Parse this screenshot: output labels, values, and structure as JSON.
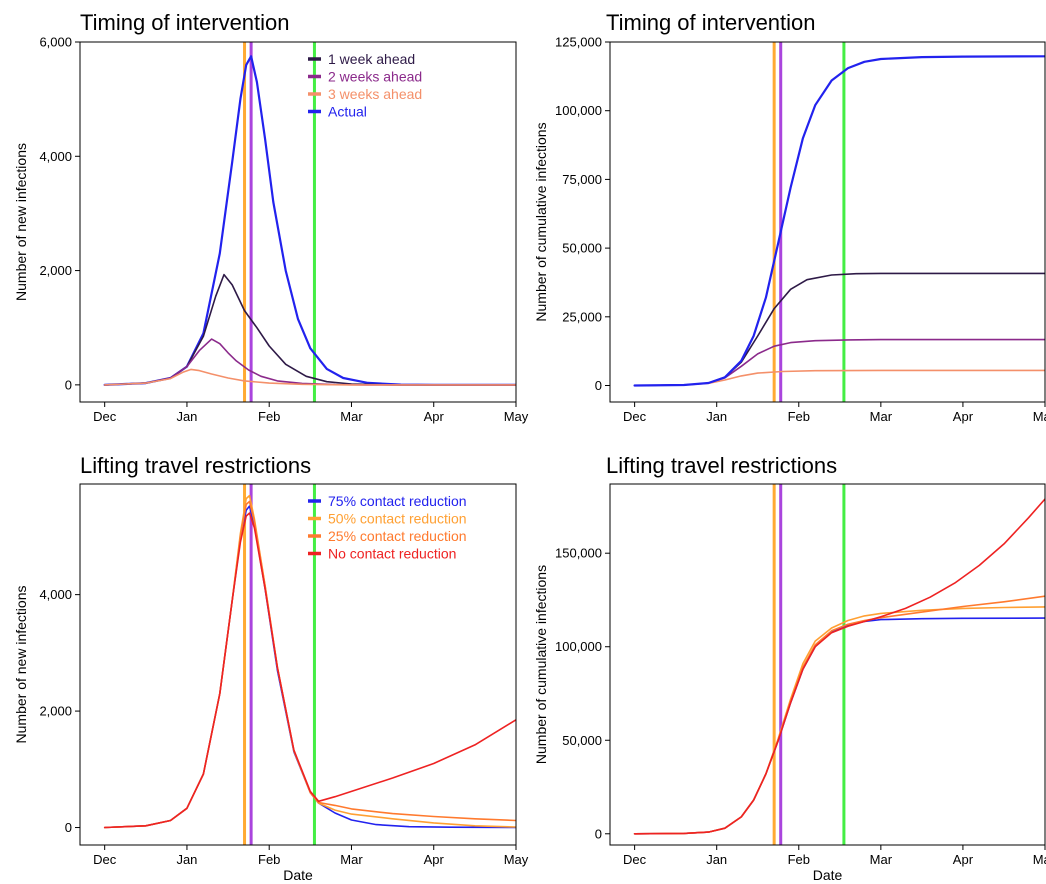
{
  "chart_data": [
    {
      "id": "tl",
      "type": "line",
      "title": "Timing of intervention",
      "xlabel": "",
      "ylabel": "Number of new infections",
      "xlim": [
        -0.3,
        5.0
      ],
      "ylim": [
        -300,
        6000
      ],
      "x_ticks": [
        {
          "v": 0,
          "label": "Dec"
        },
        {
          "v": 1,
          "label": "Jan"
        },
        {
          "v": 2,
          "label": "Feb"
        },
        {
          "v": 3,
          "label": "Mar"
        },
        {
          "v": 4,
          "label": "Apr"
        },
        {
          "v": 5,
          "label": "May"
        }
      ],
      "y_ticks": [
        {
          "v": 0,
          "label": "0"
        },
        {
          "v": 2000,
          "label": "2,000"
        },
        {
          "v": 4000,
          "label": "4,000"
        },
        {
          "v": 6000,
          "label": "6,000"
        }
      ],
      "vlines": [
        {
          "x": 1.7,
          "color": "#FFAA33"
        },
        {
          "x": 1.78,
          "color": "#AA44DD"
        },
        {
          "x": 2.55,
          "color": "#44EE44"
        }
      ],
      "legend": {
        "position": "top-right",
        "entries": [
          {
            "name": "1 week ahead",
            "color": "#2E1A47"
          },
          {
            "name": "2 weeks ahead",
            "color": "#8B2A8B"
          },
          {
            "name": "3 weeks ahead",
            "color": "#F4906A"
          },
          {
            "name": "Actual",
            "color": "#2222EE"
          }
        ]
      },
      "series": [
        {
          "name": "Actual",
          "color": "#2222EE",
          "x": [
            0,
            0.5,
            0.8,
            1.0,
            1.2,
            1.4,
            1.55,
            1.65,
            1.72,
            1.78,
            1.85,
            1.95,
            2.05,
            2.2,
            2.35,
            2.5,
            2.7,
            2.9,
            3.2,
            3.6,
            4.0,
            4.5,
            5.0
          ],
          "y": [
            0,
            30,
            120,
            320,
            900,
            2300,
            3900,
            5000,
            5600,
            5750,
            5300,
            4300,
            3200,
            2000,
            1150,
            640,
            280,
            120,
            35,
            5,
            0,
            0,
            0
          ]
        },
        {
          "name": "1 week ahead",
          "color": "#2E1A47",
          "x": [
            0,
            0.5,
            0.8,
            1.0,
            1.2,
            1.35,
            1.45,
            1.55,
            1.7,
            1.85,
            2.0,
            2.2,
            2.45,
            2.7,
            3.0,
            3.5,
            4.0,
            5.0
          ],
          "y": [
            0,
            30,
            120,
            320,
            850,
            1550,
            1930,
            1750,
            1300,
            1000,
            680,
            360,
            150,
            55,
            15,
            0,
            0,
            0
          ]
        },
        {
          "name": "2 weeks ahead",
          "color": "#8B2A8B",
          "x": [
            0,
            0.5,
            0.8,
            1.0,
            1.15,
            1.3,
            1.4,
            1.5,
            1.6,
            1.75,
            1.9,
            2.1,
            2.4,
            2.8,
            3.2,
            4.0,
            5.0
          ],
          "y": [
            0,
            30,
            120,
            320,
            600,
            800,
            720,
            560,
            420,
            260,
            150,
            70,
            25,
            5,
            0,
            0,
            0
          ]
        },
        {
          "name": "3 weeks ahead",
          "color": "#F4906A",
          "x": [
            0,
            0.5,
            0.8,
            0.95,
            1.05,
            1.15,
            1.3,
            1.5,
            1.7,
            2.0,
            2.4,
            3.0,
            4.0,
            5.0
          ],
          "y": [
            0,
            30,
            110,
            220,
            270,
            250,
            190,
            120,
            70,
            30,
            10,
            0,
            0,
            0
          ]
        }
      ]
    },
    {
      "id": "tr",
      "type": "line",
      "title": "Timing of intervention",
      "xlabel": "",
      "ylabel": "Number of cumulative infections",
      "xlim": [
        -0.3,
        5.0
      ],
      "ylim": [
        -6000,
        125000
      ],
      "x_ticks": [
        {
          "v": 0,
          "label": "Dec"
        },
        {
          "v": 1,
          "label": "Jan"
        },
        {
          "v": 2,
          "label": "Feb"
        },
        {
          "v": 3,
          "label": "Mar"
        },
        {
          "v": 4,
          "label": "Apr"
        },
        {
          "v": 5,
          "label": "May"
        }
      ],
      "y_ticks": [
        {
          "v": 0,
          "label": "0"
        },
        {
          "v": 25000,
          "label": "25,000"
        },
        {
          "v": 50000,
          "label": "50,000"
        },
        {
          "v": 75000,
          "label": "75,000"
        },
        {
          "v": 100000,
          "label": "100,000"
        },
        {
          "v": 125000,
          "label": "125,000"
        }
      ],
      "vlines": [
        {
          "x": 1.7,
          "color": "#FFAA33"
        },
        {
          "x": 1.78,
          "color": "#AA44DD"
        },
        {
          "x": 2.55,
          "color": "#44EE44"
        }
      ],
      "legend": null,
      "series": [
        {
          "name": "3 weeks ahead",
          "color": "#F4906A",
          "x": [
            0,
            0.6,
            0.9,
            1.1,
            1.3,
            1.5,
            1.8,
            2.2,
            3.0,
            5.0
          ],
          "y": [
            0,
            200,
            800,
            2000,
            3500,
            4500,
            5100,
            5400,
            5500,
            5500
          ]
        },
        {
          "name": "2 weeks ahead",
          "color": "#8B2A8B",
          "x": [
            0,
            0.6,
            0.9,
            1.1,
            1.3,
            1.5,
            1.7,
            1.9,
            2.2,
            2.6,
            3.0,
            5.0
          ],
          "y": [
            0,
            200,
            900,
            2800,
            7000,
            11500,
            14300,
            15600,
            16300,
            16600,
            16700,
            16700
          ]
        },
        {
          "name": "1 week ahead",
          "color": "#2E1A47",
          "x": [
            0,
            0.6,
            0.9,
            1.1,
            1.3,
            1.5,
            1.7,
            1.9,
            2.1,
            2.4,
            2.7,
            3.0,
            3.5,
            5.0
          ],
          "y": [
            0,
            200,
            900,
            3000,
            8500,
            18000,
            28000,
            35000,
            38500,
            40200,
            40700,
            40800,
            40800,
            40800
          ]
        },
        {
          "name": "Actual",
          "color": "#2222EE",
          "x": [
            0,
            0.6,
            0.9,
            1.1,
            1.3,
            1.45,
            1.6,
            1.75,
            1.9,
            2.05,
            2.2,
            2.4,
            2.6,
            2.8,
            3.0,
            3.5,
            4.0,
            5.0
          ],
          "y": [
            0,
            200,
            900,
            3000,
            9000,
            18000,
            32000,
            52000,
            72000,
            90000,
            102000,
            111000,
            115500,
            117800,
            118800,
            119500,
            119700,
            119800
          ]
        }
      ]
    },
    {
      "id": "bl",
      "type": "line",
      "title": "Lifting travel restrictions",
      "xlabel": "Date",
      "ylabel": "Number of new infections",
      "xlim": [
        -0.3,
        5.0
      ],
      "ylim": [
        -300,
        5900
      ],
      "x_ticks": [
        {
          "v": 0,
          "label": "Dec"
        },
        {
          "v": 1,
          "label": "Jan"
        },
        {
          "v": 2,
          "label": "Feb"
        },
        {
          "v": 3,
          "label": "Mar"
        },
        {
          "v": 4,
          "label": "Apr"
        },
        {
          "v": 5,
          "label": "May"
        }
      ],
      "y_ticks": [
        {
          "v": 0,
          "label": "0"
        },
        {
          "v": 2000,
          "label": "2,000"
        },
        {
          "v": 4000,
          "label": "4,000"
        }
      ],
      "vlines": [
        {
          "x": 1.7,
          "color": "#FFAA33"
        },
        {
          "x": 1.78,
          "color": "#AA44DD"
        },
        {
          "x": 2.55,
          "color": "#44EE44"
        }
      ],
      "legend": {
        "position": "top-right",
        "entries": [
          {
            "name": "75% contact reduction",
            "color": "#2222EE"
          },
          {
            "name": "50% contact reduction",
            "color": "#FFA033"
          },
          {
            "name": "25% contact reduction",
            "color": "#FF7A2E"
          },
          {
            "name": "No contact reduction",
            "color": "#EE2222"
          }
        ]
      },
      "series": [
        {
          "name": "75% contact reduction",
          "color": "#2222EE",
          "x": [
            0,
            0.5,
            0.8,
            1.0,
            1.2,
            1.4,
            1.55,
            1.65,
            1.72,
            1.76,
            1.82,
            1.95,
            2.1,
            2.3,
            2.5,
            2.6,
            2.8,
            3.0,
            3.3,
            3.7,
            4.2,
            5.0
          ],
          "y": [
            0,
            30,
            120,
            330,
            920,
            2300,
            3900,
            4950,
            5450,
            5520,
            5200,
            4100,
            2700,
            1300,
            600,
            420,
            250,
            130,
            50,
            15,
            5,
            0
          ]
        },
        {
          "name": "50% contact reduction",
          "color": "#FFA033",
          "x": [
            0,
            0.5,
            0.8,
            1.0,
            1.2,
            1.4,
            1.55,
            1.65,
            1.72,
            1.76,
            1.82,
            1.95,
            2.1,
            2.3,
            2.5,
            2.6,
            2.8,
            3.0,
            3.5,
            4.0,
            4.5,
            5.0
          ],
          "y": [
            0,
            30,
            120,
            330,
            920,
            2300,
            3900,
            5050,
            5650,
            5700,
            5300,
            4150,
            2750,
            1320,
            600,
            420,
            300,
            230,
            150,
            80,
            30,
            10
          ]
        },
        {
          "name": "25% contact reduction",
          "color": "#FF7A2E",
          "x": [
            0,
            0.5,
            0.8,
            1.0,
            1.2,
            1.4,
            1.55,
            1.65,
            1.72,
            1.76,
            1.82,
            1.95,
            2.1,
            2.3,
            2.5,
            2.6,
            2.8,
            3.0,
            3.5,
            4.0,
            4.5,
            5.0
          ],
          "y": [
            0,
            30,
            120,
            330,
            920,
            2300,
            3900,
            5000,
            5550,
            5600,
            5250,
            4150,
            2750,
            1320,
            600,
            430,
            380,
            320,
            240,
            190,
            150,
            120
          ]
        },
        {
          "name": "No contact reduction",
          "color": "#EE2222",
          "x": [
            0,
            0.5,
            0.8,
            1.0,
            1.2,
            1.4,
            1.55,
            1.65,
            1.72,
            1.76,
            1.82,
            1.95,
            2.1,
            2.3,
            2.5,
            2.6,
            2.8,
            3.0,
            3.5,
            4.0,
            4.5,
            5.0
          ],
          "y": [
            0,
            30,
            120,
            330,
            920,
            2300,
            3900,
            4900,
            5350,
            5400,
            5150,
            4100,
            2750,
            1330,
            620,
            450,
            530,
            620,
            850,
            1100,
            1420,
            1850
          ]
        }
      ]
    },
    {
      "id": "br",
      "type": "line",
      "title": "Lifting travel restrictions",
      "xlabel": "Date",
      "ylabel": "Number of cumulative infections",
      "xlim": [
        -0.3,
        5.0
      ],
      "ylim": [
        -6000,
        187000
      ],
      "x_ticks": [
        {
          "v": 0,
          "label": "Dec"
        },
        {
          "v": 1,
          "label": "Jan"
        },
        {
          "v": 2,
          "label": "Feb"
        },
        {
          "v": 3,
          "label": "Mar"
        },
        {
          "v": 4,
          "label": "Apr"
        },
        {
          "v": 5,
          "label": "May"
        }
      ],
      "y_ticks": [
        {
          "v": 0,
          "label": "0"
        },
        {
          "v": 50000,
          "label": "50,000"
        },
        {
          "v": 100000,
          "label": "100,000"
        },
        {
          "v": 150000,
          "label": "150,000"
        }
      ],
      "vlines": [
        {
          "x": 1.7,
          "color": "#FFAA33"
        },
        {
          "x": 1.78,
          "color": "#AA44DD"
        },
        {
          "x": 2.55,
          "color": "#44EE44"
        }
      ],
      "legend": null,
      "series": [
        {
          "name": "75% contact reduction",
          "color": "#2222EE",
          "x": [
            0,
            0.6,
            0.9,
            1.1,
            1.3,
            1.45,
            1.6,
            1.75,
            1.9,
            2.05,
            2.2,
            2.4,
            2.6,
            2.8,
            3.0,
            3.5,
            4.0,
            5.0
          ],
          "y": [
            0,
            200,
            900,
            3000,
            9000,
            18000,
            32000,
            50000,
            70000,
            88000,
            100000,
            108000,
            111500,
            113500,
            114500,
            115000,
            115200,
            115300
          ]
        },
        {
          "name": "50% contact reduction",
          "color": "#FFA033",
          "x": [
            0,
            0.6,
            0.9,
            1.1,
            1.3,
            1.45,
            1.6,
            1.75,
            1.9,
            2.05,
            2.2,
            2.4,
            2.6,
            2.8,
            3.0,
            3.5,
            4.0,
            4.5,
            5.0
          ],
          "y": [
            0,
            200,
            900,
            3000,
            9000,
            18000,
            32000,
            51000,
            72000,
            91000,
            103000,
            110000,
            114000,
            116500,
            117800,
            119500,
            120500,
            121000,
            121300
          ]
        },
        {
          "name": "25% contact reduction",
          "color": "#FF7A2E",
          "x": [
            0,
            0.6,
            0.9,
            1.1,
            1.3,
            1.45,
            1.6,
            1.75,
            1.9,
            2.05,
            2.2,
            2.4,
            2.6,
            2.8,
            3.0,
            3.5,
            4.0,
            4.5,
            5.0
          ],
          "y": [
            0,
            200,
            900,
            3000,
            9000,
            18000,
            32000,
            50500,
            71000,
            89000,
            101000,
            108500,
            112000,
            114000,
            115500,
            118500,
            121500,
            124000,
            127000
          ]
        },
        {
          "name": "No contact reduction",
          "color": "#EE2222",
          "x": [
            0,
            0.6,
            0.9,
            1.1,
            1.3,
            1.45,
            1.6,
            1.75,
            1.9,
            2.05,
            2.2,
            2.4,
            2.6,
            2.8,
            3.0,
            3.3,
            3.6,
            3.9,
            4.2,
            4.5,
            4.8,
            5.0
          ],
          "y": [
            0,
            200,
            900,
            3000,
            9000,
            18000,
            32000,
            50000,
            70000,
            88000,
            100000,
            107500,
            111000,
            113500,
            116000,
            120500,
            126500,
            134000,
            143500,
            155000,
            169000,
            179000
          ]
        }
      ]
    }
  ]
}
